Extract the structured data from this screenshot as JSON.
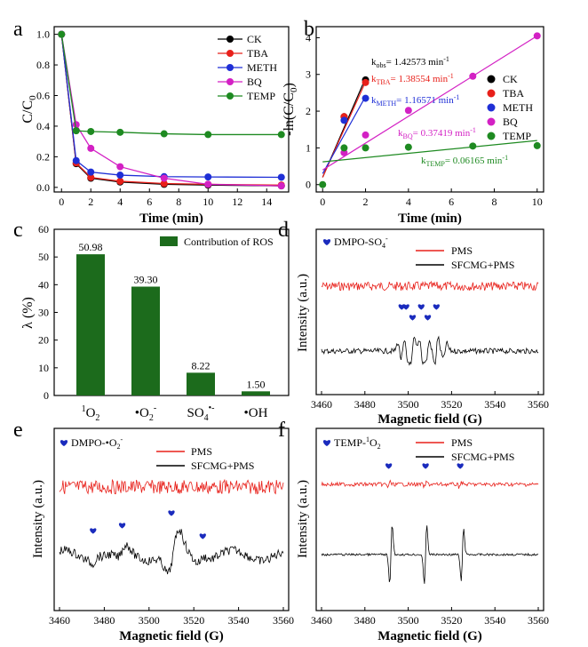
{
  "chart_data": [
    {
      "panel": "a",
      "type": "line",
      "xlabel": "Time (min)",
      "ylabel": "C/C0",
      "xlim": [
        -0.5,
        15.5
      ],
      "ylim": [
        -0.03,
        1.05
      ],
      "xticks": [
        0,
        2,
        4,
        6,
        8,
        10,
        12,
        14
      ],
      "yticks": [
        0.0,
        0.2,
        0.4,
        0.6,
        0.8,
        1.0
      ],
      "legend": "top-right",
      "series": [
        {
          "name": "CK",
          "color": "#000000",
          "x": [
            0,
            1,
            2,
            4,
            7,
            10,
            15
          ],
          "y": [
            1.0,
            0.155,
            0.06,
            0.035,
            0.02,
            0.015,
            0.01
          ]
        },
        {
          "name": "TBA",
          "color": "#e8201a",
          "x": [
            0,
            1,
            2,
            4,
            7,
            10,
            15
          ],
          "y": [
            1.0,
            0.16,
            0.065,
            0.04,
            0.025,
            0.02,
            0.015
          ]
        },
        {
          "name": "METH",
          "color": "#1f2fd6",
          "x": [
            0,
            1,
            2,
            4,
            7,
            10,
            15
          ],
          "y": [
            1.0,
            0.175,
            0.1,
            0.08,
            0.07,
            0.068,
            0.066
          ]
        },
        {
          "name": "BQ",
          "color": "#d321c4",
          "x": [
            0,
            1,
            2,
            4,
            7,
            10,
            15
          ],
          "y": [
            1.0,
            0.41,
            0.255,
            0.135,
            0.06,
            0.02,
            0.01
          ]
        },
        {
          "name": "TEMP",
          "color": "#1e8a21",
          "x": [
            0,
            1,
            2,
            4,
            7,
            10,
            15
          ],
          "y": [
            1.0,
            0.37,
            0.365,
            0.36,
            0.35,
            0.345,
            0.345
          ]
        }
      ]
    },
    {
      "panel": "b",
      "type": "scatter",
      "xlabel": "Time (min)",
      "ylabel": "-ln(C/C0)",
      "xlim": [
        -0.3,
        10.3
      ],
      "ylim": [
        -0.2,
        4.3
      ],
      "xticks": [
        0,
        2,
        4,
        6,
        8,
        10
      ],
      "yticks": [
        0,
        1,
        2,
        3,
        4
      ],
      "legend": "right",
      "series": [
        {
          "name": "CK",
          "color": "#000000",
          "x": [
            1,
            2
          ],
          "y": [
            1.85,
            2.85
          ],
          "fit_label": "kobs= 1.42573 min-1"
        },
        {
          "name": "TBA",
          "color": "#e8201a",
          "x": [
            1,
            2
          ],
          "y": [
            1.85,
            2.78
          ],
          "fit_label": "kTBA= 1.38554 min-1"
        },
        {
          "name": "METH",
          "color": "#1f2fd6",
          "x": [
            1,
            2
          ],
          "y": [
            1.75,
            2.35
          ],
          "fit_label": "kMETH= 1.16571 min-1"
        },
        {
          "name": "BQ",
          "color": "#d321c4",
          "x": [
            1,
            2,
            4,
            7,
            10
          ],
          "y": [
            0.87,
            1.35,
            2.02,
            2.95,
            4.05
          ],
          "fit_label": "kBQ= 0.37419 min-1"
        },
        {
          "name": "TEMP",
          "color": "#1e8a21",
          "x": [
            0,
            1,
            2,
            4,
            7,
            10
          ],
          "y": [
            0.0,
            1.0,
            1.0,
            1.02,
            1.05,
            1.06
          ],
          "fit_label": "kTEMP= 0.06165 min-1"
        }
      ]
    },
    {
      "panel": "c",
      "type": "bar",
      "ylabel": "λ (%)",
      "ylim": [
        0,
        60
      ],
      "yticks": [
        0,
        10,
        20,
        30,
        40,
        50,
        60
      ],
      "categories": [
        "1O2",
        "•O2-",
        "SO4•-",
        "•OH"
      ],
      "values": [
        50.98,
        39.3,
        8.22,
        1.5
      ],
      "value_labels": [
        "50.98",
        "39.30",
        "8.22",
        "1.50"
      ],
      "legend_label": "Contribution of ROS",
      "color": "#1c6b1c"
    },
    {
      "panel": "d",
      "type": "line",
      "xlabel": "Magnetic field (G)",
      "ylabel": "Intensity (a.u.)",
      "xlim": [
        3460,
        3560
      ],
      "xticks": [
        3460,
        3480,
        3500,
        3520,
        3540,
        3560
      ],
      "marker_label": "DMPO-SO4-",
      "series": [
        {
          "name": "PMS",
          "color": "#e8201a"
        },
        {
          "name": "SFCMG+PMS",
          "color": "#000000"
        }
      ],
      "peak_marks_g": [
        3496,
        3499,
        3502,
        3506,
        3509,
        3513
      ]
    },
    {
      "panel": "e",
      "type": "line",
      "xlabel": "Magnetic field (G)",
      "ylabel": "Intensity (a.u.)",
      "xlim": [
        3460,
        3560
      ],
      "xticks": [
        3460,
        3480,
        3500,
        3520,
        3540,
        3560
      ],
      "marker_label": "DMPO-•O2-",
      "series": [
        {
          "name": "PMS",
          "color": "#e8201a"
        },
        {
          "name": "SFCMG+PMS",
          "color": "#000000"
        }
      ],
      "peak_marks_g": [
        3475,
        3488,
        3510,
        3524
      ]
    },
    {
      "panel": "f",
      "type": "line",
      "xlabel": "Magnetic field (G)",
      "ylabel": "Intensity (a.u.)",
      "xlim": [
        3460,
        3560
      ],
      "xticks": [
        3460,
        3480,
        3500,
        3520,
        3540,
        3560
      ],
      "marker_label": "TEMP-1O2",
      "series": [
        {
          "name": "PMS",
          "color": "#e8201a"
        },
        {
          "name": "SFCMG+PMS",
          "color": "#000000"
        }
      ],
      "peak_marks_g": [
        3491,
        3508,
        3524
      ]
    }
  ],
  "panels": {
    "a": {
      "letter": "a",
      "xlabel": "Time (min)",
      "ylabel": "C/C",
      "ylabel_sub": "0",
      "xtick_labels": [
        "0",
        "2",
        "4",
        "6",
        "8",
        "10",
        "12",
        "14"
      ],
      "ytick_labels": [
        "0.0",
        "0.2",
        "0.4",
        "0.6",
        "0.8",
        "1.0"
      ],
      "legend": [
        "CK",
        "TBA",
        "METH",
        "BQ",
        "TEMP"
      ]
    },
    "b": {
      "letter": "b",
      "xlabel": "Time (min)",
      "ylabel_pre": "-ln(C/C",
      "ylabel_sub": "0",
      "ylabel_post": ")",
      "xtick_labels": [
        "0",
        "2",
        "4",
        "6",
        "8",
        "10"
      ],
      "ytick_labels": [
        "0",
        "1",
        "2",
        "3",
        "4"
      ],
      "legend": [
        "CK",
        "TBA",
        "METH",
        "BQ",
        "TEMP"
      ],
      "k_labels": [
        {
          "k": "k",
          "sub": "obs",
          "val": "= 1.42573 min",
          "sup": "-1"
        },
        {
          "k": "k",
          "sub": "TBA",
          "val": "= 1.38554 min",
          "sup": "-1"
        },
        {
          "k": "k",
          "sub": "METH",
          "val": "= 1.16571 min",
          "sup": "-1"
        },
        {
          "k": "k",
          "sub": "BQ",
          "val": "= 0.37419 min",
          "sup": "-1"
        },
        {
          "k": "k",
          "sub": "TEMP",
          "val": "= 0.06165 min",
          "sup": "-1"
        }
      ]
    },
    "c": {
      "letter": "c",
      "ylabel": "λ (%)",
      "ytick_labels": [
        "0",
        "10",
        "20",
        "30",
        "40",
        "50",
        "60"
      ],
      "legend": "Contribution of ROS",
      "cats": [
        {
          "pre": "",
          "sup1": "1",
          "main": "O",
          "sub": "2",
          "sup2": ""
        },
        {
          "pre": "",
          "sup1": "",
          "main": "•O",
          "sub": "2",
          "sup2": "-"
        },
        {
          "pre": "",
          "sup1": "",
          "main": "SO",
          "sub": "4",
          "sup2": "•-"
        },
        {
          "pre": "",
          "sup1": "",
          "main": "•OH",
          "sub": "",
          "sup2": ""
        }
      ]
    },
    "d": {
      "letter": "d",
      "tag_main": "DMPO-SO",
      "tag_sub": "4",
      "tag_sup": "-",
      "leg1": "PMS",
      "leg2": "SFCMG+PMS",
      "xlabel": "Magnetic field (G)",
      "ylabel": "Intensity (a.u.)",
      "xtick_labels": [
        "3460",
        "3480",
        "3500",
        "3520",
        "3540",
        "3560"
      ]
    },
    "e": {
      "letter": "e",
      "tag_main": "DMPO-•O",
      "tag_sub": "2",
      "tag_sup": "-",
      "leg1": "PMS",
      "leg2": "SFCMG+PMS",
      "xlabel": "Magnetic field (G)",
      "ylabel": "Intensity (a.u.)",
      "xtick_labels": [
        "3460",
        "3480",
        "3500",
        "3520",
        "3540",
        "3560"
      ]
    },
    "f": {
      "letter": "f",
      "tag_main": "TEMP-",
      "tag_presup": "1",
      "tag_rest": "O",
      "tag_sub": "2",
      "leg1": "PMS",
      "leg2": "SFCMG+PMS",
      "xlabel": "Magnetic field (G)",
      "ylabel": "Intensity (a.u.)",
      "xtick_labels": [
        "3460",
        "3480",
        "3500",
        "3520",
        "3540",
        "3560"
      ]
    }
  },
  "icons": {
    "peak_marker": "heart-icon"
  }
}
